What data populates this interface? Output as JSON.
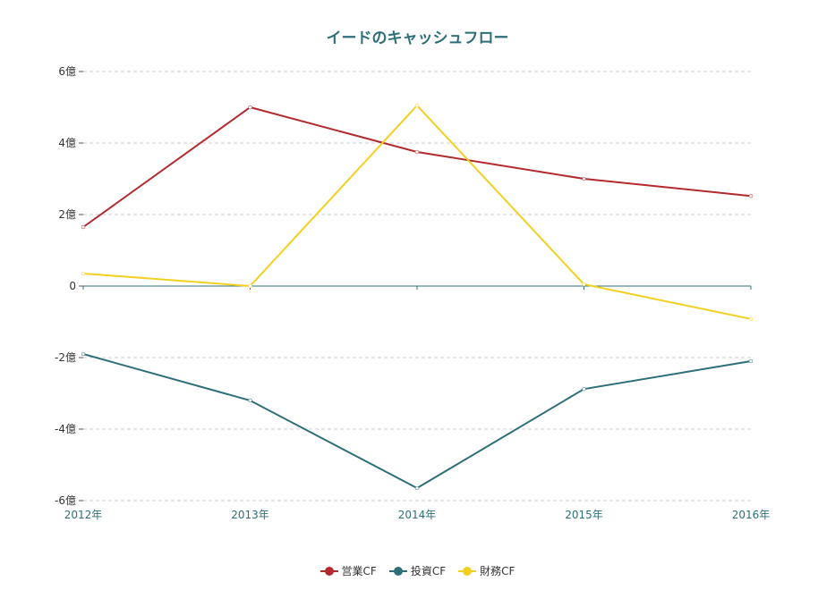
{
  "chart_data": {
    "type": "line",
    "title": "イードのキャッシュフロー",
    "categories": [
      "2012年",
      "2013年",
      "2014年",
      "2015年",
      "2016年"
    ],
    "y_ticks": [
      "6億",
      "4億",
      "2億",
      "0",
      "-2億",
      "-4億",
      "-6億"
    ],
    "ylim": [
      -6,
      6
    ],
    "y_unit": "億",
    "grid": true,
    "legend_position": "bottom",
    "series": [
      {
        "name": "営業CF",
        "color": "#b22a2e",
        "values": [
          1.65,
          5.0,
          3.75,
          3.0,
          2.52
        ]
      },
      {
        "name": "投資CF",
        "color": "#2d6f78",
        "values": [
          -1.9,
          -3.2,
          -5.65,
          -2.88,
          -2.1
        ]
      },
      {
        "name": "財務CF",
        "color": "#f3d020",
        "values": [
          0.35,
          0.0,
          5.05,
          0.05,
          -0.92
        ]
      }
    ]
  }
}
